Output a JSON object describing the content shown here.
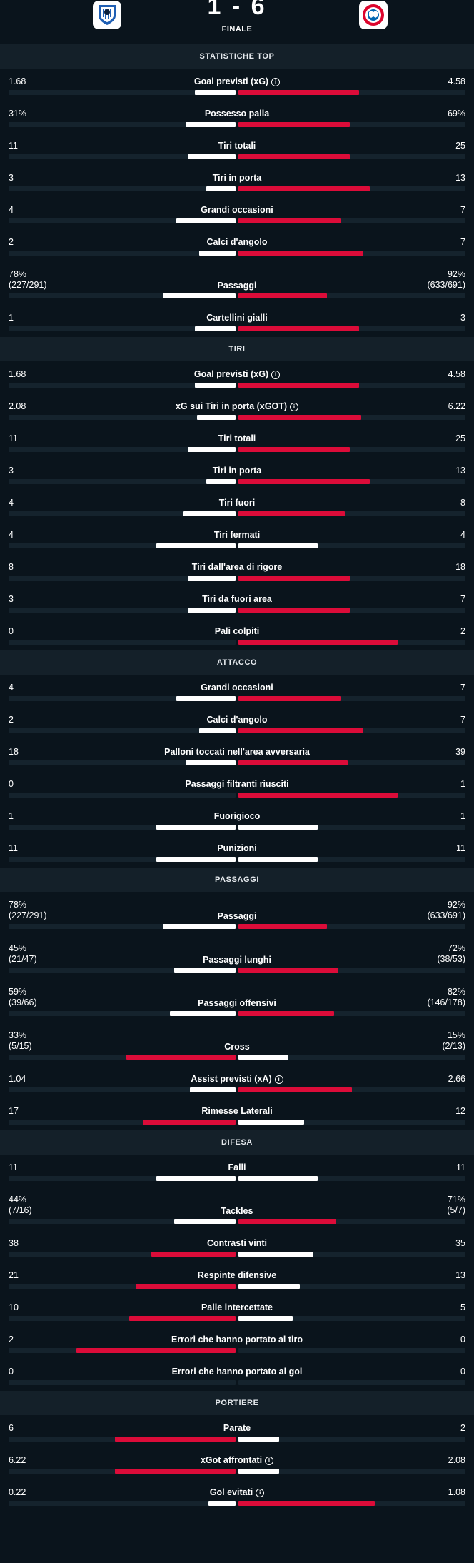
{
  "header": {
    "score": "1 - 6",
    "status": "FINALE",
    "home_logo": "atalanta-logo",
    "away_logo": "bayern-logo"
  },
  "colors": {
    "background": "#0a141c",
    "section_header": "#142029",
    "bar_track": "#15232d",
    "winner_bar": "#dc0c39",
    "other_bar": "#ffffff"
  },
  "sections": [
    {
      "title": "STATISTICHE TOP",
      "rows": [
        {
          "label": "Goal previsti (xG)",
          "info": true,
          "home": "1.68",
          "away": "4.58",
          "home_share": 0.18,
          "away_share": 0.53,
          "winner": "away"
        },
        {
          "label": "Possesso palla",
          "home": "31%",
          "away": "69%",
          "home_share": 0.22,
          "away_share": 0.49,
          "winner": "away"
        },
        {
          "label": "Tiri totali",
          "home": "11",
          "away": "25",
          "home_share": 0.21,
          "away_share": 0.49,
          "winner": "away"
        },
        {
          "label": "Tiri in porta",
          "home": "3",
          "away": "13",
          "home_share": 0.13,
          "away_share": 0.58,
          "winner": "away"
        },
        {
          "label": "Grandi occasioni",
          "home": "4",
          "away": "7",
          "home_share": 0.26,
          "away_share": 0.45,
          "winner": "away"
        },
        {
          "label": "Calci d'angolo",
          "home": "2",
          "away": "7",
          "home_share": 0.16,
          "away_share": 0.55,
          "winner": "away"
        },
        {
          "label": "Passaggi",
          "home": "78%",
          "home_sub": "(227/291)",
          "away": "92%",
          "away_sub": "(633/691)",
          "home_share": 0.32,
          "away_share": 0.39,
          "winner": "away"
        },
        {
          "label": "Cartellini gialli",
          "home": "1",
          "away": "3",
          "home_share": 0.18,
          "away_share": 0.53,
          "winner": "away"
        }
      ]
    },
    {
      "title": "TIRI",
      "rows": [
        {
          "label": "Goal previsti (xG)",
          "info": true,
          "home": "1.68",
          "away": "4.58",
          "home_share": 0.18,
          "away_share": 0.53,
          "winner": "away"
        },
        {
          "label": "xG sui Tiri in porta (xGOT)",
          "info": true,
          "home": "2.08",
          "away": "6.22",
          "home_share": 0.17,
          "away_share": 0.54,
          "winner": "away"
        },
        {
          "label": "Tiri totali",
          "home": "11",
          "away": "25",
          "home_share": 0.21,
          "away_share": 0.49,
          "winner": "away"
        },
        {
          "label": "Tiri in porta",
          "home": "3",
          "away": "13",
          "home_share": 0.13,
          "away_share": 0.58,
          "winner": "away"
        },
        {
          "label": "Tiri fuori",
          "home": "4",
          "away": "8",
          "home_share": 0.23,
          "away_share": 0.47,
          "winner": "away"
        },
        {
          "label": "Tiri fermati",
          "home": "4",
          "away": "4",
          "home_share": 0.35,
          "away_share": 0.35,
          "winner": "none"
        },
        {
          "label": "Tiri dall'area di rigore",
          "home": "8",
          "away": "18",
          "home_share": 0.21,
          "away_share": 0.49,
          "winner": "away"
        },
        {
          "label": "Tiri da fuori area",
          "home": "3",
          "away": "7",
          "home_share": 0.21,
          "away_share": 0.49,
          "winner": "away"
        },
        {
          "label": "Pali colpiti",
          "home": "0",
          "away": "2",
          "home_share": 0.0,
          "away_share": 0.7,
          "winner": "away"
        }
      ]
    },
    {
      "title": "ATTACCO",
      "rows": [
        {
          "label": "Grandi occasioni",
          "home": "4",
          "away": "7",
          "home_share": 0.26,
          "away_share": 0.45,
          "winner": "away"
        },
        {
          "label": "Calci d'angolo",
          "home": "2",
          "away": "7",
          "home_share": 0.16,
          "away_share": 0.55,
          "winner": "away"
        },
        {
          "label": "Palloni toccati nell'area avversaria",
          "home": "18",
          "away": "39",
          "home_share": 0.22,
          "away_share": 0.48,
          "winner": "away"
        },
        {
          "label": "Passaggi filtranti riusciti",
          "home": "0",
          "away": "1",
          "home_share": 0.0,
          "away_share": 0.7,
          "winner": "away"
        },
        {
          "label": "Fuorigioco",
          "home": "1",
          "away": "1",
          "home_share": 0.35,
          "away_share": 0.35,
          "winner": "none"
        },
        {
          "label": "Punizioni",
          "home": "11",
          "away": "11",
          "home_share": 0.35,
          "away_share": 0.35,
          "winner": "none"
        }
      ]
    },
    {
      "title": "PASSAGGI",
      "rows": [
        {
          "label": "Passaggi",
          "home": "78%",
          "home_sub": "(227/291)",
          "away": "92%",
          "away_sub": "(633/691)",
          "home_share": 0.32,
          "away_share": 0.39,
          "winner": "away"
        },
        {
          "label": "Passaggi lunghi",
          "home": "45%",
          "home_sub": "(21/47)",
          "away": "72%",
          "away_sub": "(38/53)",
          "home_share": 0.27,
          "away_share": 0.44,
          "winner": "away"
        },
        {
          "label": "Passaggi offensivi",
          "home": "59%",
          "home_sub": "(39/66)",
          "away": "82%",
          "away_sub": "(146/178)",
          "home_share": 0.29,
          "away_share": 0.42,
          "winner": "away"
        },
        {
          "label": "Cross",
          "home": "33%",
          "home_sub": "(5/15)",
          "away": "15%",
          "away_sub": "(2/13)",
          "home_share": 0.48,
          "away_share": 0.22,
          "winner": "home"
        },
        {
          "label": "Assist previsti (xA)",
          "info": true,
          "home": "1.04",
          "away": "2.66",
          "home_share": 0.2,
          "away_share": 0.5,
          "winner": "away"
        },
        {
          "label": "Rimesse Laterali",
          "home": "17",
          "away": "12",
          "home_share": 0.41,
          "away_share": 0.29,
          "winner": "home"
        }
      ]
    },
    {
      "title": "DIFESA",
      "rows": [
        {
          "label": "Falli",
          "home": "11",
          "away": "11",
          "home_share": 0.35,
          "away_share": 0.35,
          "winner": "none"
        },
        {
          "label": "Tackles",
          "home": "44%",
          "home_sub": "(7/16)",
          "away": "71%",
          "away_sub": "(5/7)",
          "home_share": 0.27,
          "away_share": 0.43,
          "winner": "away"
        },
        {
          "label": "Contrasti vinti",
          "home": "38",
          "away": "35",
          "home_share": 0.37,
          "away_share": 0.33,
          "winner": "home"
        },
        {
          "label": "Respinte difensive",
          "home": "21",
          "away": "13",
          "home_share": 0.44,
          "away_share": 0.27,
          "winner": "home"
        },
        {
          "label": "Palle intercettate",
          "home": "10",
          "away": "5",
          "home_share": 0.47,
          "away_share": 0.24,
          "winner": "home"
        },
        {
          "label": "Errori che hanno portato al tiro",
          "home": "2",
          "away": "0",
          "home_share": 0.7,
          "away_share": 0.0,
          "winner": "home"
        },
        {
          "label": "Errori che hanno portato al gol",
          "home": "0",
          "away": "0",
          "home_share": 0.0,
          "away_share": 0.0,
          "winner": "none"
        }
      ]
    },
    {
      "title": "PORTIERE",
      "rows": [
        {
          "label": "Parate",
          "home": "6",
          "away": "2",
          "home_share": 0.53,
          "away_share": 0.18,
          "winner": "home"
        },
        {
          "label": "xGot affrontati",
          "info": true,
          "home": "6.22",
          "away": "2.08",
          "home_share": 0.53,
          "away_share": 0.18,
          "winner": "home"
        },
        {
          "label": "Gol evitati",
          "info": true,
          "home": "0.22",
          "away": "1.08",
          "home_share": 0.12,
          "away_share": 0.6,
          "winner": "away"
        }
      ]
    }
  ]
}
